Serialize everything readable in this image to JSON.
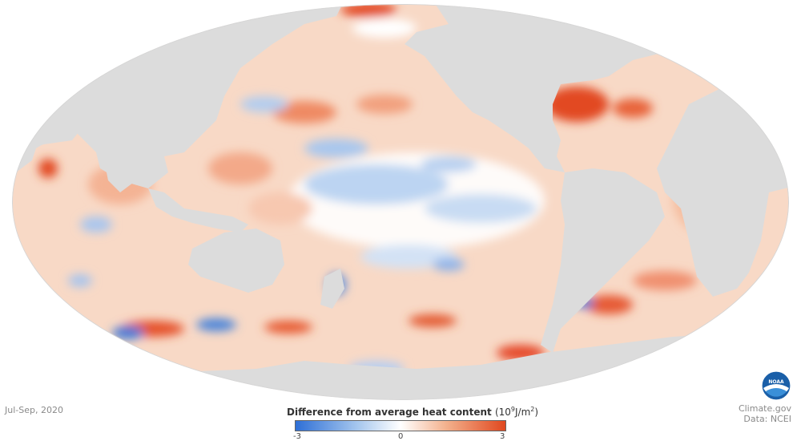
{
  "date": "Jul-Sep, 2020",
  "legend": {
    "title": "Difference from average heat content",
    "unit_base": "(10",
    "unit_exp": "9",
    "unit_mid": "J/m",
    "unit_sq": "2",
    "unit_end": ")",
    "min": "-3",
    "mid": "0",
    "max": "3"
  },
  "credits": {
    "source": "Climate.gov",
    "data": "Data: NCEI"
  },
  "logo": {
    "text": "NOAA"
  },
  "colors": {
    "land": "#dcdcdc",
    "negative": "#2e6fd6",
    "positive": "#e0481f",
    "neutral": "#ffffff"
  }
}
